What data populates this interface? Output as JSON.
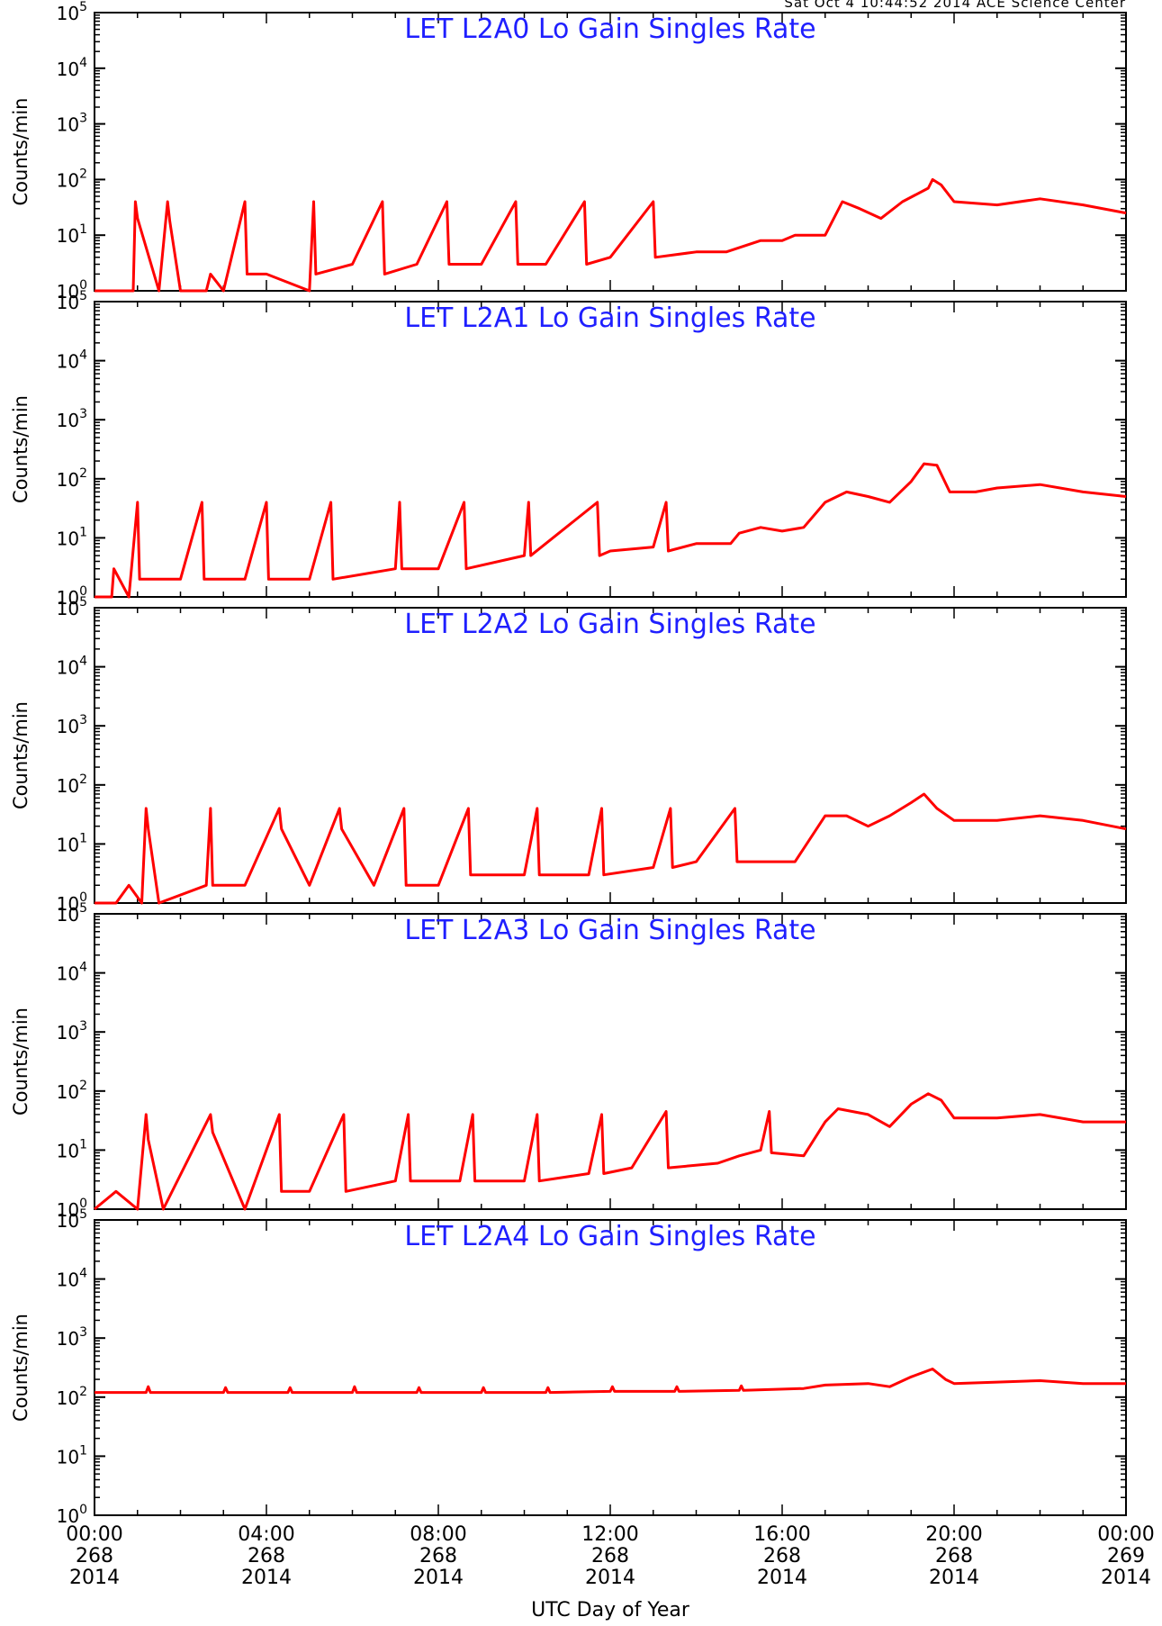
{
  "header_stamp": "Sat Oct  4 10:44:52 2014 ACE Science Center",
  "colors": {
    "title": "#1f1fff",
    "series": "#ff0000",
    "axes": "#000000"
  },
  "chart_data": [
    {
      "type": "line",
      "title": "LET L2A0 Lo Gain Singles Rate",
      "ylabel": "Counts/min",
      "yscale": "log",
      "ylim": [
        1,
        100000
      ],
      "xlim": [
        0,
        24
      ],
      "series": [
        {
          "values": [
            [
              0,
              1
            ],
            [
              0.9,
              1
            ],
            [
              0.95,
              40
            ],
            [
              1.0,
              20
            ],
            [
              1.5,
              1
            ],
            [
              1.7,
              40
            ],
            [
              1.75,
              18
            ],
            [
              2,
              1
            ],
            [
              2.6,
              1
            ],
            [
              2.7,
              2
            ],
            [
              3,
              1
            ],
            [
              3.5,
              40
            ],
            [
              3.55,
              2
            ],
            [
              4,
              2
            ],
            [
              5,
              1
            ],
            [
              5.1,
              40
            ],
            [
              5.15,
              2
            ],
            [
              6,
              3
            ],
            [
              6.7,
              40
            ],
            [
              6.75,
              2
            ],
            [
              7.5,
              3
            ],
            [
              8.2,
              40
            ],
            [
              8.25,
              3
            ],
            [
              9,
              3
            ],
            [
              9.8,
              40
            ],
            [
              9.85,
              3
            ],
            [
              10.5,
              3
            ],
            [
              11.4,
              40
            ],
            [
              11.45,
              3
            ],
            [
              12,
              4
            ],
            [
              13,
              40
            ],
            [
              13.05,
              4
            ],
            [
              14,
              5
            ],
            [
              14.7,
              5
            ],
            [
              15.5,
              8
            ],
            [
              16,
              8
            ],
            [
              16.3,
              10
            ],
            [
              17,
              10
            ],
            [
              17.4,
              40
            ],
            [
              17.8,
              30
            ],
            [
              18.3,
              20
            ],
            [
              18.8,
              40
            ],
            [
              19.4,
              70
            ],
            [
              19.5,
              100
            ],
            [
              19.7,
              80
            ],
            [
              20,
              40
            ],
            [
              21,
              35
            ],
            [
              22,
              45
            ],
            [
              23,
              35
            ],
            [
              24,
              25
            ]
          ]
        }
      ]
    },
    {
      "type": "line",
      "title": "LET L2A1 Lo Gain Singles Rate",
      "ylabel": "Counts/min",
      "yscale": "log",
      "ylim": [
        1,
        100000
      ],
      "xlim": [
        0,
        24
      ],
      "series": [
        {
          "values": [
            [
              0,
              1
            ],
            [
              0.4,
              1
            ],
            [
              0.45,
              3
            ],
            [
              0.8,
              1
            ],
            [
              1.0,
              40
            ],
            [
              1.05,
              2
            ],
            [
              2,
              2
            ],
            [
              2.5,
              40
            ],
            [
              2.55,
              2
            ],
            [
              3.5,
              2
            ],
            [
              4,
              40
            ],
            [
              4.05,
              2
            ],
            [
              5,
              2
            ],
            [
              5.5,
              40
            ],
            [
              5.55,
              2
            ],
            [
              7,
              3
            ],
            [
              7.1,
              40
            ],
            [
              7.15,
              3
            ],
            [
              8,
              3
            ],
            [
              8.6,
              40
            ],
            [
              8.65,
              3
            ],
            [
              10,
              5
            ],
            [
              10.1,
              40
            ],
            [
              10.15,
              5
            ],
            [
              11.7,
              40
            ],
            [
              11.75,
              5
            ],
            [
              12,
              6
            ],
            [
              13,
              7
            ],
            [
              13.3,
              40
            ],
            [
              13.35,
              6
            ],
            [
              14,
              8
            ],
            [
              14.8,
              8
            ],
            [
              15,
              12
            ],
            [
              15.5,
              15
            ],
            [
              16,
              13
            ],
            [
              16.5,
              15
            ],
            [
              17,
              40
            ],
            [
              17.5,
              60
            ],
            [
              18,
              50
            ],
            [
              18.5,
              40
            ],
            [
              19,
              90
            ],
            [
              19.3,
              180
            ],
            [
              19.6,
              170
            ],
            [
              19.9,
              60
            ],
            [
              20.5,
              60
            ],
            [
              21,
              70
            ],
            [
              22,
              80
            ],
            [
              23,
              60
            ],
            [
              24,
              50
            ]
          ]
        }
      ]
    },
    {
      "type": "line",
      "title": "LET L2A2 Lo Gain Singles Rate",
      "ylabel": "Counts/min",
      "yscale": "log",
      "ylim": [
        1,
        100000
      ],
      "xlim": [
        0,
        24
      ],
      "series": [
        {
          "values": [
            [
              0,
              1
            ],
            [
              0.5,
              1
            ],
            [
              0.8,
              2
            ],
            [
              1.1,
              1
            ],
            [
              1.2,
              40
            ],
            [
              1.25,
              18
            ],
            [
              1.5,
              1
            ],
            [
              2.6,
              2
            ],
            [
              2.7,
              40
            ],
            [
              2.75,
              2
            ],
            [
              3.5,
              2
            ],
            [
              4.3,
              40
            ],
            [
              4.35,
              18
            ],
            [
              5,
              2
            ],
            [
              5.7,
              40
            ],
            [
              5.75,
              18
            ],
            [
              6.5,
              2
            ],
            [
              7.2,
              40
            ],
            [
              7.25,
              2
            ],
            [
              8,
              2
            ],
            [
              8.7,
              40
            ],
            [
              8.75,
              3
            ],
            [
              10,
              3
            ],
            [
              10.3,
              40
            ],
            [
              10.35,
              3
            ],
            [
              11.5,
              3
            ],
            [
              11.8,
              40
            ],
            [
              11.85,
              3
            ],
            [
              13,
              4
            ],
            [
              13.4,
              40
            ],
            [
              13.45,
              4
            ],
            [
              14,
              5
            ],
            [
              14.9,
              40
            ],
            [
              14.95,
              5
            ],
            [
              15.5,
              5
            ],
            [
              16.3,
              5
            ],
            [
              17,
              30
            ],
            [
              17.5,
              30
            ],
            [
              18,
              20
            ],
            [
              18.5,
              30
            ],
            [
              19,
              50
            ],
            [
              19.3,
              70
            ],
            [
              19.6,
              40
            ],
            [
              20,
              25
            ],
            [
              21,
              25
            ],
            [
              22,
              30
            ],
            [
              23,
              25
            ],
            [
              24,
              18
            ]
          ]
        }
      ]
    },
    {
      "type": "line",
      "title": "LET L2A3 Lo Gain Singles Rate",
      "ylabel": "Counts/min",
      "yscale": "log",
      "ylim": [
        1,
        100000
      ],
      "xlim": [
        0,
        24
      ],
      "series": [
        {
          "values": [
            [
              0,
              1
            ],
            [
              0.5,
              2
            ],
            [
              1,
              1
            ],
            [
              1.2,
              40
            ],
            [
              1.25,
              15
            ],
            [
              1.6,
              1
            ],
            [
              2.7,
              40
            ],
            [
              2.75,
              20
            ],
            [
              3.5,
              1
            ],
            [
              4.3,
              40
            ],
            [
              4.35,
              2
            ],
            [
              5,
              2
            ],
            [
              5.8,
              40
            ],
            [
              5.85,
              2
            ],
            [
              7,
              3
            ],
            [
              7.3,
              40
            ],
            [
              7.35,
              3
            ],
            [
              8.5,
              3
            ],
            [
              8.8,
              40
            ],
            [
              8.85,
              3
            ],
            [
              10,
              3
            ],
            [
              10.3,
              40
            ],
            [
              10.35,
              3
            ],
            [
              11.5,
              4
            ],
            [
              11.8,
              40
            ],
            [
              11.85,
              4
            ],
            [
              12.5,
              5
            ],
            [
              13.3,
              45
            ],
            [
              13.35,
              5
            ],
            [
              14.5,
              6
            ],
            [
              15,
              8
            ],
            [
              15.5,
              10
            ],
            [
              15.7,
              45
            ],
            [
              15.75,
              9
            ],
            [
              16.5,
              8
            ],
            [
              17,
              30
            ],
            [
              17.3,
              50
            ],
            [
              18,
              40
            ],
            [
              18.5,
              25
            ],
            [
              19,
              60
            ],
            [
              19.4,
              90
            ],
            [
              19.7,
              70
            ],
            [
              20,
              35
            ],
            [
              21,
              35
            ],
            [
              22,
              40
            ],
            [
              23,
              30
            ],
            [
              24,
              30
            ]
          ]
        }
      ]
    },
    {
      "type": "line",
      "title": "LET L2A4 Lo Gain Singles Rate",
      "ylabel": "Counts/min",
      "yscale": "log",
      "ylim": [
        1,
        100000
      ],
      "xlim": [
        0,
        24
      ],
      "series": [
        {
          "values": [
            [
              0,
              120
            ],
            [
              1.2,
              120
            ],
            [
              1.25,
              150
            ],
            [
              1.3,
              120
            ],
            [
              3,
              120
            ],
            [
              3.05,
              145
            ],
            [
              3.1,
              120
            ],
            [
              4.5,
              120
            ],
            [
              4.55,
              145
            ],
            [
              4.6,
              120
            ],
            [
              6,
              120
            ],
            [
              6.05,
              150
            ],
            [
              6.1,
              120
            ],
            [
              7.5,
              120
            ],
            [
              7.55,
              145
            ],
            [
              7.6,
              120
            ],
            [
              9,
              120
            ],
            [
              9.05,
              145
            ],
            [
              9.1,
              120
            ],
            [
              10.5,
              120
            ],
            [
              10.55,
              145
            ],
            [
              10.6,
              120
            ],
            [
              12,
              125
            ],
            [
              12.05,
              150
            ],
            [
              12.1,
              125
            ],
            [
              13.5,
              125
            ],
            [
              13.55,
              150
            ],
            [
              13.6,
              125
            ],
            [
              15,
              130
            ],
            [
              15.05,
              155
            ],
            [
              15.1,
              130
            ],
            [
              16.5,
              140
            ],
            [
              17,
              160
            ],
            [
              18,
              170
            ],
            [
              18.5,
              150
            ],
            [
              19,
              220
            ],
            [
              19.5,
              300
            ],
            [
              19.8,
              200
            ],
            [
              20,
              170
            ],
            [
              21,
              180
            ],
            [
              22,
              190
            ],
            [
              23,
              170
            ],
            [
              24,
              170
            ]
          ]
        }
      ]
    }
  ],
  "xaxis": {
    "title": "UTC Day of Year",
    "ticks": [
      {
        "x": 0,
        "time": "00:00",
        "doy": "268",
        "year": "2014"
      },
      {
        "x": 4,
        "time": "04:00",
        "doy": "268",
        "year": "2014"
      },
      {
        "x": 8,
        "time": "08:00",
        "doy": "268",
        "year": "2014"
      },
      {
        "x": 12,
        "time": "12:00",
        "doy": "268",
        "year": "2014"
      },
      {
        "x": 16,
        "time": "16:00",
        "doy": "268",
        "year": "2014"
      },
      {
        "x": 20,
        "time": "20:00",
        "doy": "268",
        "year": "2014"
      },
      {
        "x": 24,
        "time": "00:00",
        "doy": "269",
        "year": "2014"
      }
    ]
  }
}
